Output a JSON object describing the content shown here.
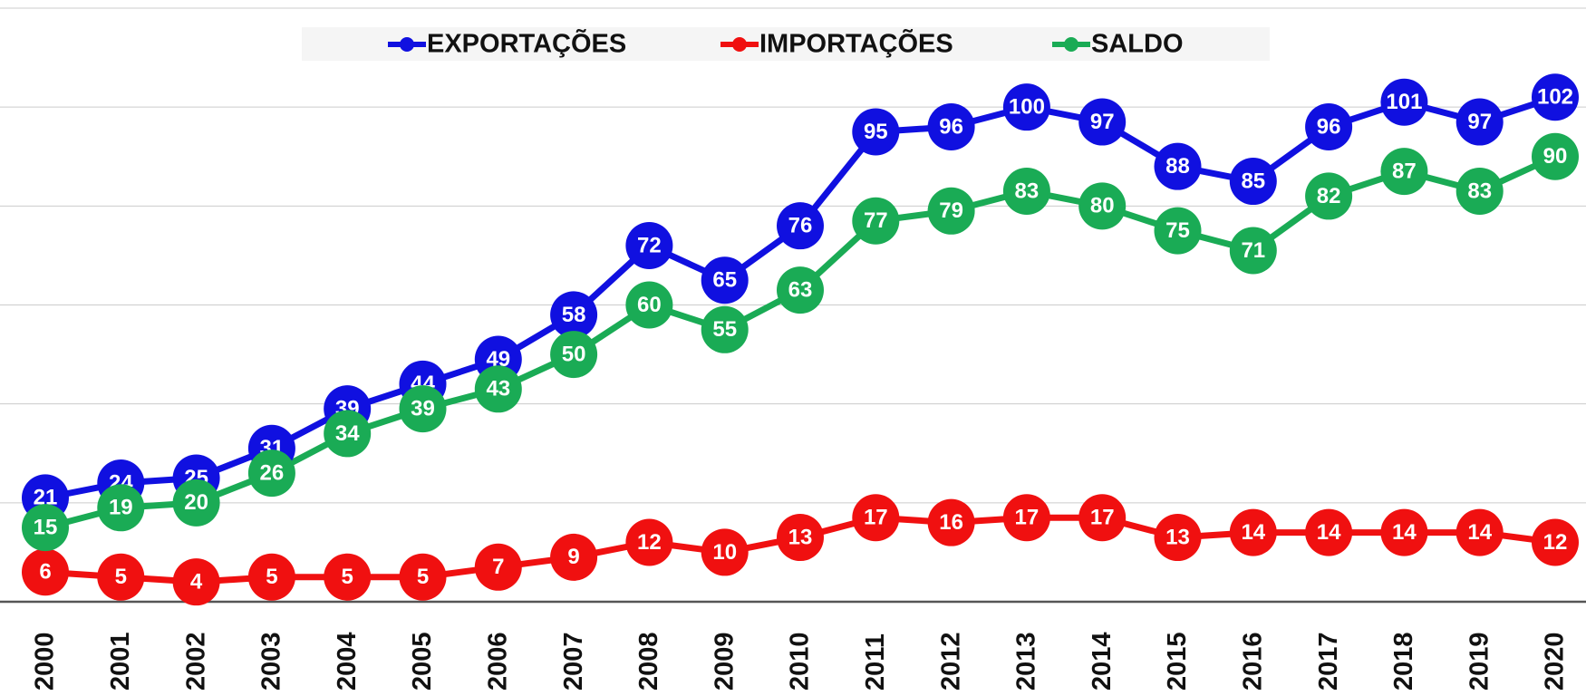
{
  "chart_data": {
    "type": "line",
    "categories": [
      "2000",
      "2001",
      "2002",
      "2003",
      "2004",
      "2005",
      "2006",
      "2007",
      "2008",
      "2009",
      "2010",
      "2011",
      "2012",
      "2013",
      "2014",
      "2015",
      "2016",
      "2017",
      "2018",
      "2019",
      "2020"
    ],
    "series": [
      {
        "name": "EXPORTAÇÕES",
        "color": "#1010e0",
        "values": [
          21,
          24,
          25,
          31,
          39,
          44,
          49,
          58,
          72,
          65,
          76,
          95,
          96,
          100,
          97,
          88,
          85,
          96,
          101,
          97,
          102
        ]
      },
      {
        "name": "IMPORTAÇÕES",
        "color": "#f01010",
        "values": [
          6,
          5,
          4,
          5,
          5,
          5,
          7,
          9,
          12,
          10,
          13,
          17,
          16,
          17,
          17,
          13,
          14,
          14,
          14,
          14,
          12
        ]
      },
      {
        "name": "SALDO",
        "color": "#1aab55",
        "values": [
          15,
          19,
          20,
          26,
          34,
          39,
          43,
          50,
          60,
          55,
          63,
          77,
          79,
          83,
          80,
          75,
          71,
          82,
          87,
          83,
          90
        ]
      }
    ],
    "ylim": [
      0,
      120
    ],
    "yticks": [
      0,
      20,
      40,
      60,
      80,
      100,
      120
    ],
    "grid": true,
    "legend": "top"
  }
}
